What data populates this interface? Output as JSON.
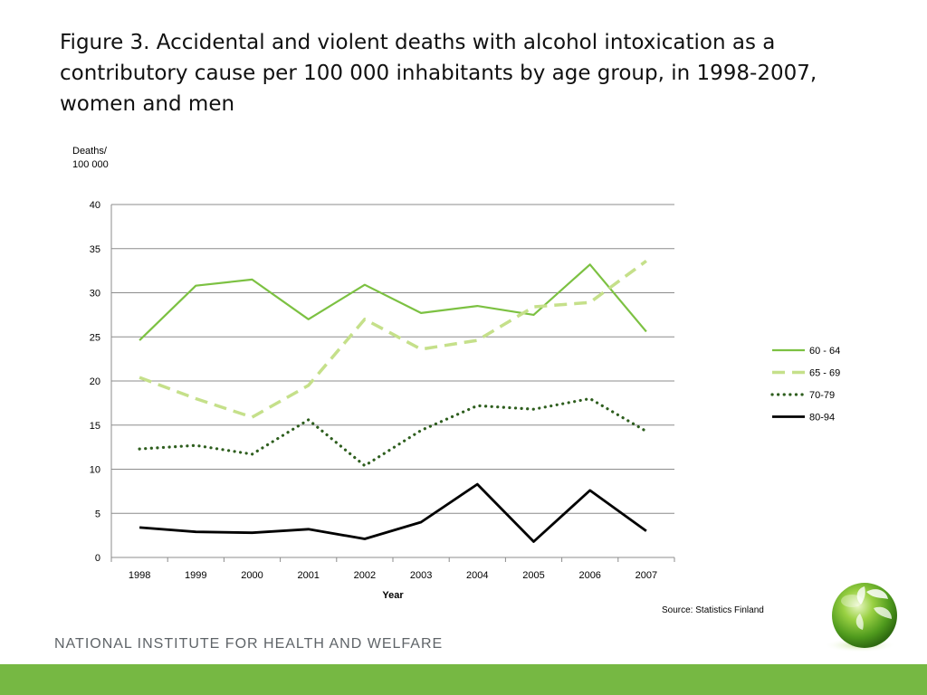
{
  "title": "Figure 3. Accidental and violent deaths with alcohol intoxication as a contributory cause per 100 000 inhabitants by age group, in 1998-2007, women and men",
  "source": "Source: Statistics Finland",
  "footer": "NATIONAL INSTITUTE FOR HEALTH AND WELFARE",
  "colors": {
    "footer_bar": "#76b843"
  },
  "chart_data": {
    "type": "line",
    "ylabel_line1": "Deaths/",
    "ylabel_line2": "100 000",
    "xlabel": "Year",
    "ylim": [
      0,
      40
    ],
    "yticks": [
      0,
      5,
      10,
      15,
      20,
      25,
      30,
      35,
      40
    ],
    "grid": true,
    "legend": "right",
    "x": [
      "1998",
      "1999",
      "2000",
      "2001",
      "2002",
      "2003",
      "2004",
      "2005",
      "2006",
      "2007"
    ],
    "series": [
      {
        "name": "60 - 64",
        "color": "#7cc142",
        "style": "solid",
        "values": [
          24.6,
          30.8,
          31.5,
          27.0,
          30.9,
          27.7,
          28.5,
          27.5,
          33.2,
          25.6
        ]
      },
      {
        "name": "65 - 69",
        "color": "#c5e08a",
        "style": "dashed",
        "values": [
          20.4,
          18.0,
          15.9,
          19.5,
          27.0,
          23.6,
          24.6,
          28.4,
          28.9,
          33.6
        ]
      },
      {
        "name": "70-79",
        "color": "#2e5e1e",
        "style": "dotted",
        "values": [
          12.3,
          12.7,
          11.7,
          15.6,
          10.4,
          14.4,
          17.2,
          16.8,
          18.0,
          14.3
        ]
      },
      {
        "name": "80-94",
        "color": "#000000",
        "style": "solid",
        "values": [
          3.4,
          2.9,
          2.8,
          3.2,
          2.1,
          4.0,
          8.3,
          1.8,
          7.6,
          3.0
        ]
      }
    ]
  }
}
